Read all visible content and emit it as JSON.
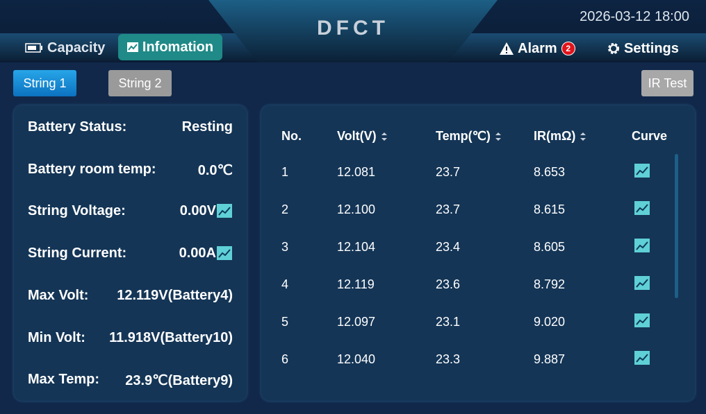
{
  "header": {
    "title": "DFCT",
    "datetime": "2026-03-12 18:00",
    "tabs": [
      "Capacity",
      "Infomation"
    ],
    "alarm": {
      "label": "Alarm",
      "count": "2"
    },
    "settings": "Settings"
  },
  "strings": [
    "String 1",
    "String 2"
  ],
  "ir_test": "IR Test",
  "summary": [
    [
      "Battery Status:",
      "Resting"
    ],
    [
      "Battery room temp:",
      "0.0℃"
    ],
    [
      "String Voltage:",
      "0.00V"
    ],
    [
      "String Current:",
      "0.00A"
    ],
    [
      "Max Volt:",
      "12.119V(Battery4)"
    ],
    [
      "Min Volt:",
      "11.918V(Battery10)"
    ],
    [
      "Max Temp:",
      "23.9℃(Battery9)"
    ]
  ],
  "table": {
    "columns": [
      "No.",
      "Volt(V)",
      "Temp(℃)",
      "IR(mΩ)",
      "Curve"
    ],
    "rows": [
      [
        "1",
        "12.081",
        "23.7",
        "8.653"
      ],
      [
        "2",
        "12.100",
        "23.7",
        "8.615"
      ],
      [
        "3",
        "12.104",
        "23.4",
        "8.605"
      ],
      [
        "4",
        "12.119",
        "23.6",
        "8.792"
      ],
      [
        "5",
        "12.097",
        "23.1",
        "9.020"
      ],
      [
        "6",
        "12.040",
        "23.3",
        "9.887"
      ]
    ]
  }
}
